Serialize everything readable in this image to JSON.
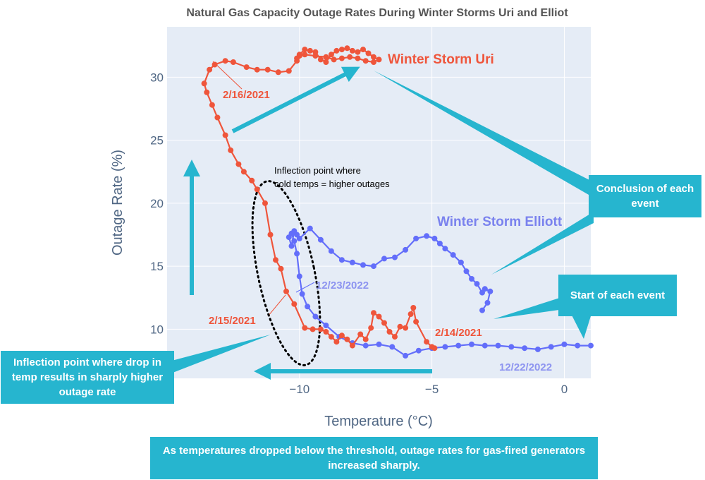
{
  "colors": {
    "uri": "#ef553b",
    "elliott": "#636efa",
    "accent": "#26b5cf",
    "plot_bg": "#e5ecf6",
    "grid": "#ffffff"
  },
  "callouts": {
    "conclusion": "Conclusion of each event",
    "start": "Start of each event",
    "inflection_drop": "Inflection point where drop in temp results in sharply higher outage rate",
    "summary": "As temperatures dropped below the threshold, outage rates for gas-fired generators increased sharply."
  },
  "chart_data": {
    "type": "scatter",
    "title": "Natural Gas Capacity Outage Rates During Winter Storms Uri and Elliot",
    "xlabel": "Temperature (°C)",
    "ylabel": "Outage Rate (%)",
    "xlim": [
      -15,
      1
    ],
    "ylim": [
      6.1,
      34
    ],
    "x_ticks": [
      -10,
      -5,
      0
    ],
    "y_ticks": [
      10,
      15,
      20,
      25,
      30
    ],
    "grid": true,
    "mode": "lines+markers",
    "series": [
      {
        "name": "Winter Storm Uri",
        "x": [
          -4.9,
          -5.0,
          -5.2,
          -5.6,
          -5.7,
          -5.8,
          -6.0,
          -6.2,
          -6.4,
          -6.6,
          -6.8,
          -7.0,
          -7.2,
          -7.3,
          -7.5,
          -7.7,
          -8.0,
          -8.2,
          -8.4,
          -8.6,
          -8.8,
          -9.0,
          -9.2,
          -9.5,
          -9.8,
          -10.2,
          -10.5,
          -10.7,
          -10.9,
          -11.1,
          -11.3,
          -11.6,
          -11.8,
          -12.1,
          -12.3,
          -12.6,
          -12.8,
          -13.1,
          -13.3,
          -13.5,
          -13.6,
          -13.4,
          -13.2,
          -12.8,
          -12.5,
          -12.0,
          -11.6,
          -11.2,
          -10.8,
          -10.4,
          -10.1,
          -10.0,
          -9.8,
          -9.6,
          -9.4,
          -9.2,
          -9.0,
          -8.8,
          -8.6,
          -8.4,
          -8.2,
          -8.0,
          -7.8,
          -7.6,
          -7.4,
          -7.2,
          -7.0,
          -7.2,
          -7.5,
          -7.8,
          -8.1,
          -8.4,
          -8.7,
          -9.0,
          -9.4,
          -9.8,
          -10.0,
          -10.1
        ],
        "y": [
          8.5,
          8.6,
          9.0,
          10.6,
          11.7,
          11.2,
          10.1,
          10.2,
          9.4,
          9.8,
          10.5,
          11.0,
          11.3,
          10.1,
          9.2,
          9.6,
          8.7,
          9.2,
          9.5,
          9.0,
          9.4,
          9.8,
          10.0,
          10.0,
          10.1,
          12.0,
          13.0,
          14.8,
          15.5,
          17.5,
          20.0,
          21.1,
          21.8,
          22.5,
          23.1,
          24.2,
          25.4,
          26.8,
          27.8,
          28.8,
          29.5,
          30.6,
          31.0,
          31.3,
          31.2,
          30.8,
          30.6,
          30.6,
          30.4,
          30.5,
          31.3,
          31.8,
          32.2,
          32.1,
          32.0,
          31.4,
          31.2,
          31.8,
          32.1,
          32.2,
          32.3,
          32.1,
          32.0,
          32.2,
          31.9,
          31.6,
          31.4,
          31.2,
          31.3,
          31.5,
          31.6,
          31.5,
          31.4,
          31.6,
          31.7,
          31.8,
          31.7,
          31.5
        ]
      },
      {
        "name": "Winter Storm Elliott",
        "x": [
          1.0,
          0.5,
          0.0,
          -0.5,
          -1.0,
          -1.5,
          -2.0,
          -2.5,
          -3.0,
          -3.5,
          -4.0,
          -4.5,
          -5.0,
          -5.5,
          -6.0,
          -6.5,
          -7.0,
          -7.5,
          -8.0,
          -8.5,
          -9.0,
          -9.4,
          -9.7,
          -9.9,
          -10.0,
          -10.1,
          -10.2,
          -10.3,
          -10.4,
          -10.3,
          -10.2,
          -10.1,
          -10.0,
          -9.6,
          -9.2,
          -8.8,
          -8.4,
          -8.0,
          -7.6,
          -7.2,
          -6.8,
          -6.4,
          -6.0,
          -5.6,
          -5.2,
          -4.9,
          -4.7,
          -4.5,
          -4.2,
          -3.9,
          -3.7,
          -3.5,
          -3.3,
          -3.1,
          -3.0,
          -2.8,
          -2.9,
          -3.1
        ],
        "y": [
          8.7,
          8.7,
          8.8,
          8.6,
          8.4,
          8.5,
          8.6,
          8.7,
          8.7,
          8.8,
          8.7,
          8.6,
          8.5,
          8.3,
          7.9,
          8.6,
          8.8,
          8.7,
          8.9,
          9.4,
          10.3,
          11.0,
          11.8,
          12.8,
          14.2,
          16.0,
          17.0,
          17.6,
          17.3,
          16.6,
          17.8,
          17.5,
          17.2,
          18.0,
          17.1,
          16.2,
          15.5,
          15.3,
          15.1,
          15.0,
          15.6,
          15.7,
          16.3,
          17.2,
          17.4,
          17.2,
          16.8,
          16.4,
          15.9,
          15.3,
          14.6,
          14.0,
          13.6,
          12.9,
          13.2,
          13.0,
          12.1,
          11.5
        ]
      }
    ],
    "annotations": {
      "series_labels": [
        "Winter Storm Uri",
        "Winter Storm Elliott"
      ],
      "dates": [
        "2/16/2021",
        "2/15/2021",
        "2/14/2021",
        "12/23/2022",
        "12/22/2022"
      ],
      "inflection_note": [
        "Inflection point where",
        "cold temps = higher outages"
      ]
    }
  }
}
